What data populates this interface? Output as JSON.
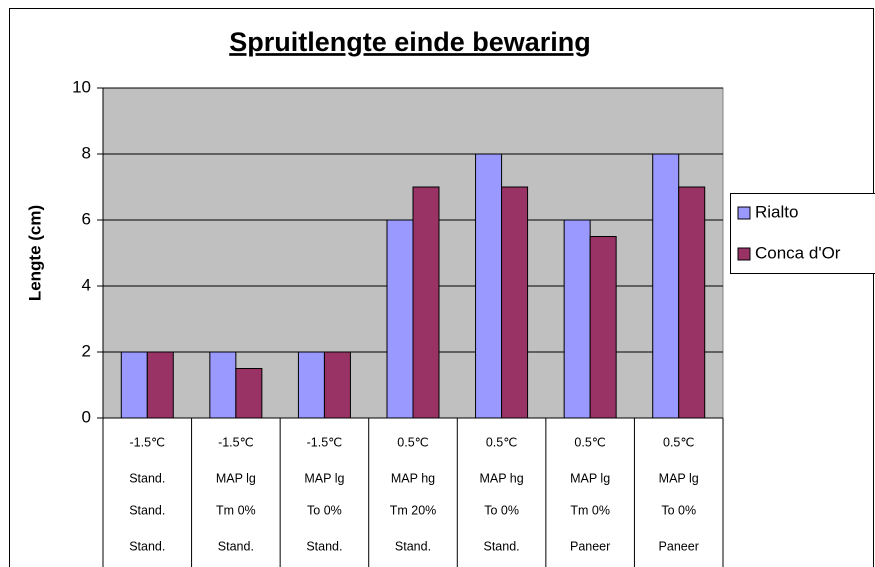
{
  "chart_data": {
    "type": "bar",
    "title": "Spruitlengte einde bewaring",
    "y_label": "Lengte (cm)",
    "categories": [
      [
        "-1.5℃",
        "Stand.",
        "Stand.",
        "Stand."
      ],
      [
        "-1.5℃",
        "MAP lg",
        "Tm 0%",
        "Stand."
      ],
      [
        "-1.5℃",
        "MAP lg",
        "To 0%",
        "Stand."
      ],
      [
        "0.5℃",
        "MAP hg",
        "Tm 20%",
        "Stand."
      ],
      [
        "0.5℃",
        "MAP hg",
        "To 0%",
        "Stand."
      ],
      [
        "0.5℃",
        "MAP lg",
        "Tm 0%",
        "Paneer"
      ],
      [
        "0.5℃",
        "MAP lg",
        "To 0%",
        "Paneer"
      ]
    ],
    "series": [
      {
        "name": "Rialto",
        "color": "#9999ff",
        "values": [
          2,
          2,
          2,
          6,
          8,
          6,
          8
        ]
      },
      {
        "name": "Conca d'Or",
        "color": "#993366",
        "values": [
          2,
          1.5,
          2,
          7,
          7,
          5.5,
          7
        ]
      }
    ],
    "ylim": [
      0,
      10
    ],
    "yticks": [
      0,
      2,
      4,
      6,
      8,
      10
    ],
    "grid": true,
    "legend": "right"
  }
}
